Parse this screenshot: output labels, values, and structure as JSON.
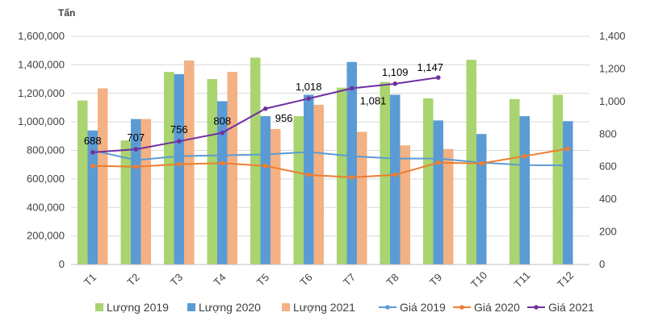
{
  "chart_data": {
    "type": "bar",
    "unit_label": "Tấn",
    "categories": [
      "T1",
      "T2",
      "T3",
      "T4",
      "T5",
      "T6",
      "T7",
      "T8",
      "T9",
      "T10",
      "T11",
      "T12"
    ],
    "y_left": {
      "min": 0,
      "max": 1600000,
      "step": 200000,
      "tick_labels": [
        "0",
        "200,000",
        "400,000",
        "600,000",
        "800,000",
        "1,000,000",
        "1,200,000",
        "1,400,000",
        "1,600,000"
      ]
    },
    "y_right": {
      "min": 0,
      "max": 1400,
      "step": 200,
      "tick_labels": [
        "0",
        "200",
        "400",
        "600",
        "800",
        "1,000",
        "1,200",
        "1,400"
      ]
    },
    "grid": true,
    "legend_position": "bottom",
    "series": [
      {
        "name": "Lượng 2019",
        "type": "bar",
        "axis": "left",
        "color": "#A9D46F",
        "values": [
          1150000,
          870000,
          1350000,
          1300000,
          1450000,
          1040000,
          1240000,
          1280000,
          1165000,
          1435000,
          1160000,
          1190000
        ]
      },
      {
        "name": "Lượng 2020",
        "type": "bar",
        "axis": "left",
        "color": "#5B9BD5",
        "values": [
          940000,
          1020000,
          1335000,
          1145000,
          1040000,
          1190000,
          1420000,
          1190000,
          1010000,
          915000,
          1040000,
          1005000
        ]
      },
      {
        "name": "Lượng 2021",
        "type": "bar",
        "axis": "left",
        "color": "#F4B183",
        "values": [
          1235000,
          1020000,
          1430000,
          1350000,
          950000,
          1120000,
          930000,
          835000,
          810000,
          null,
          null,
          null
        ]
      },
      {
        "name": "Giá 2019",
        "type": "line",
        "axis": "right",
        "color": "#5B9BD5",
        "values": [
          700,
          640,
          665,
          670,
          675,
          690,
          665,
          650,
          650,
          625,
          610,
          608
        ]
      },
      {
        "name": "Giá 2020",
        "type": "line",
        "axis": "right",
        "color": "#ED7D31",
        "values": [
          605,
          600,
          615,
          622,
          605,
          550,
          535,
          550,
          625,
          620,
          665,
          710
        ]
      },
      {
        "name": "Giá 2021",
        "type": "line",
        "axis": "right",
        "color": "#7030A0",
        "values": [
          688,
          707,
          756,
          808,
          956,
          1018,
          1081,
          1109,
          1147,
          null,
          null,
          null
        ],
        "data_labels": [
          "688",
          "707",
          "756",
          "808",
          "956",
          "1,018",
          "1,081",
          "1,109",
          "1,147"
        ]
      }
    ]
  }
}
